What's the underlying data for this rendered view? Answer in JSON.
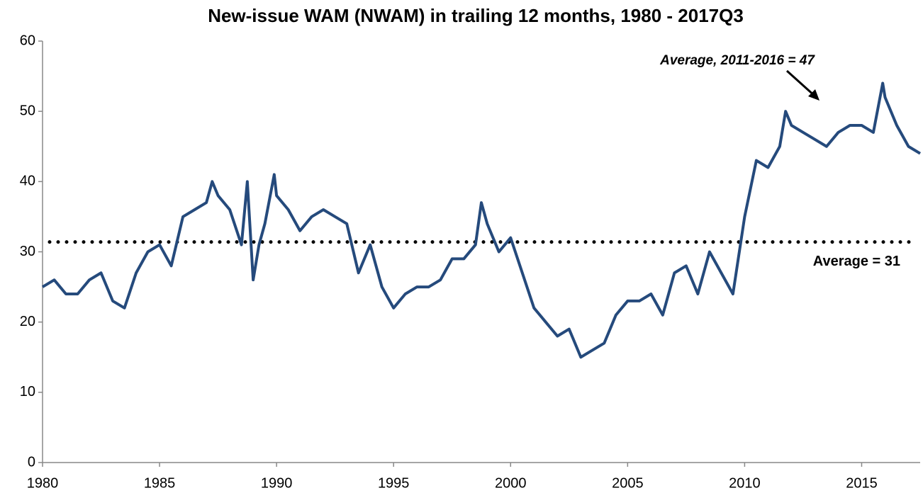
{
  "chart_data": {
    "type": "line",
    "title": "New-issue WAM (NWAM) in trailing 12 months, 1980 -  2017Q3",
    "x": [
      1980,
      1980.5,
      1981,
      1981.5,
      1982,
      1982.5,
      1983,
      1983.5,
      1984,
      1984.5,
      1985,
      1985.5,
      1986,
      1986.5,
      1987,
      1987.25,
      1987.5,
      1988,
      1988.5,
      1988.75,
      1989,
      1989.25,
      1989.5,
      1989.9,
      1990,
      1990.5,
      1991,
      1991.5,
      1992,
      1992.5,
      1993,
      1993.5,
      1994,
      1994.5,
      1995,
      1995.5,
      1996,
      1996.5,
      1997,
      1997.5,
      1998,
      1998.5,
      1998.75,
      1999,
      1999.5,
      2000,
      2000.5,
      2001,
      2001.5,
      2002,
      2002.5,
      2003,
      2003.5,
      2004,
      2004.5,
      2005,
      2005.5,
      2006,
      2006.5,
      2007,
      2007.5,
      2008,
      2008.5,
      2009,
      2009.5,
      2010,
      2010.5,
      2011,
      2011.5,
      2011.75,
      2012,
      2012.5,
      2013,
      2013.5,
      2014,
      2014.5,
      2015,
      2015.5,
      2015.9,
      2016,
      2016.5,
      2017,
      2017.5
    ],
    "series": [
      {
        "name": "NWAM",
        "color": "#254a7c",
        "values": [
          25,
          26,
          24,
          24,
          26,
          27,
          23,
          22,
          27,
          30,
          31,
          28,
          35,
          36,
          37,
          40,
          38,
          36,
          31,
          40,
          26,
          31,
          34,
          41,
          38,
          36,
          33,
          35,
          36,
          35,
          34,
          27,
          31,
          25,
          22,
          24,
          25,
          25,
          26,
          29,
          29,
          31,
          37,
          34,
          30,
          32,
          27,
          22,
          20,
          18,
          19,
          15,
          16,
          17,
          21,
          23,
          23,
          24,
          21,
          27,
          28,
          24,
          30,
          27,
          24,
          35,
          43,
          42,
          45,
          50,
          48,
          47,
          46,
          45,
          47,
          48,
          48,
          47,
          54,
          52,
          48,
          45,
          44
        ]
      }
    ],
    "average": {
      "value": 31.4,
      "label": "Average = 31"
    },
    "annotation": "Average, 2011-2016 = 47",
    "xlim": [
      1980,
      2017.5
    ],
    "xticks": [
      1980,
      1985,
      1990,
      1995,
      2000,
      2005,
      2010,
      2015
    ],
    "ylim": [
      0,
      60
    ],
    "yticks": [
      0,
      10,
      20,
      30,
      40,
      50,
      60
    ]
  }
}
